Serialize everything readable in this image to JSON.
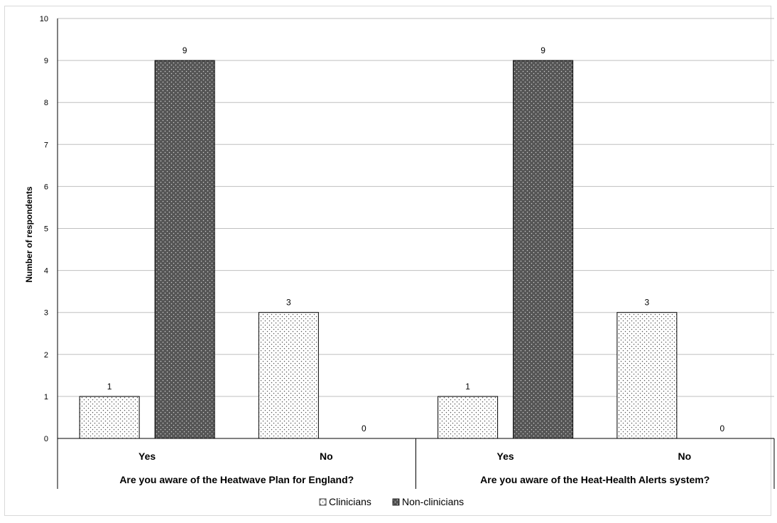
{
  "chart_data": {
    "type": "bar",
    "title": "",
    "ylabel": "Number of respondents",
    "ylim": [
      0,
      10
    ],
    "yticks": [
      0,
      1,
      2,
      3,
      4,
      5,
      6,
      7,
      8,
      9,
      10
    ],
    "grid": true,
    "legend_position": "bottom",
    "groups": [
      {
        "label": "Are you aware of the Heatwave Plan for England?",
        "categories": [
          "Yes",
          "No"
        ]
      },
      {
        "label": "Are you aware of the Heat-Health Alerts system?",
        "categories": [
          "Yes",
          "No"
        ]
      }
    ],
    "series": [
      {
        "name": "Clinicians",
        "pattern": "dotted-light",
        "values": [
          1,
          3,
          1,
          3
        ]
      },
      {
        "name": "Non-clinicians",
        "pattern": "dotted-dark",
        "values": [
          9,
          0,
          9,
          0
        ]
      }
    ],
    "colors": {
      "clinicians_fill": "#ffffff",
      "clinicians_dots": "#555555",
      "nonclinicians_fill": "#555555",
      "nonclinicians_dots": "#cfcfcf",
      "grid": "#bfbfbf",
      "axis": "#000000"
    }
  }
}
